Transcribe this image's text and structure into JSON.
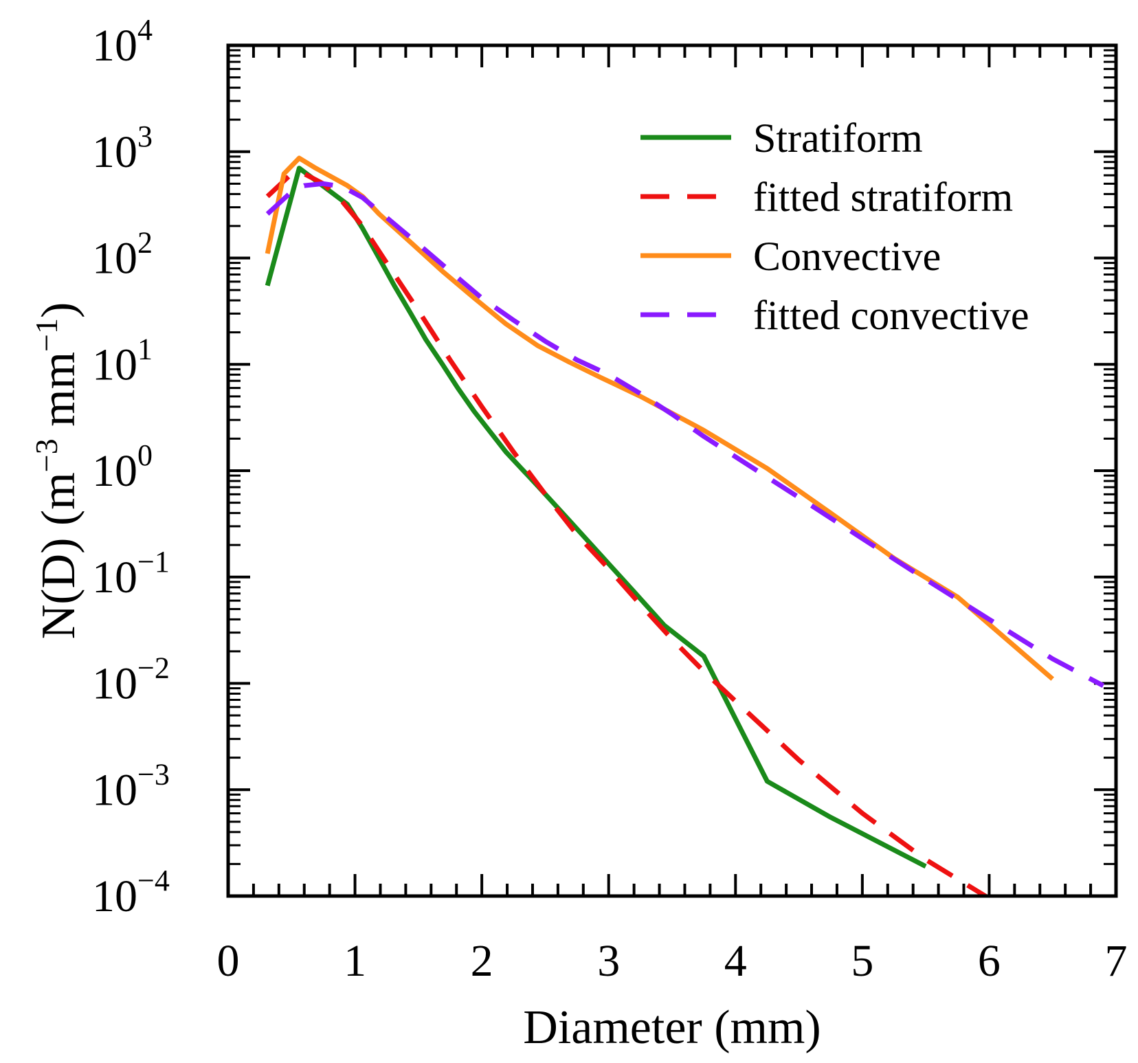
{
  "chart_data": {
    "type": "line",
    "title": "",
    "xlabel": "Diameter (mm)",
    "ylabel": {
      "prefix": "N(D) (m",
      "exp1": "−3",
      "middle": " mm",
      "exp2": "−1",
      "suffix": ")"
    },
    "x_scale": "linear",
    "y_scale": "log",
    "xlim": [
      0,
      7
    ],
    "ylim": [
      0.0001,
      10000
    ],
    "x_ticks": [
      "0",
      "1",
      "2",
      "3",
      "4",
      "5",
      "6",
      "7"
    ],
    "y_ticks": [
      {
        "value": 0.0001,
        "base": "10",
        "exp": "−4"
      },
      {
        "value": 0.001,
        "base": "10",
        "exp": "−3"
      },
      {
        "value": 0.01,
        "base": "10",
        "exp": "−2"
      },
      {
        "value": 0.1,
        "base": "10",
        "exp": "−1"
      },
      {
        "value": 1,
        "base": "10",
        "exp": "0"
      },
      {
        "value": 10,
        "base": "10",
        "exp": "1"
      },
      {
        "value": 100,
        "base": "10",
        "exp": "2"
      },
      {
        "value": 1000,
        "base": "10",
        "exp": "3"
      },
      {
        "value": 10000,
        "base": "10",
        "exp": "4"
      }
    ],
    "legend_position": "top-right",
    "series": [
      {
        "name": "Stratiform",
        "color": "#1a8a1a",
        "dash": "solid",
        "x": [
          0.31,
          0.56,
          0.94,
          1.06,
          1.19,
          1.31,
          1.44,
          1.56,
          1.69,
          1.81,
          1.94,
          2.19,
          2.44,
          2.69,
          2.94,
          3.19,
          3.44,
          3.75,
          4.25,
          4.75,
          5.5
        ],
        "y": [
          55,
          700,
          320,
          190,
          100,
          55,
          30,
          17,
          10,
          6,
          3.6,
          1.5,
          0.72,
          0.34,
          0.16,
          0.075,
          0.035,
          0.018,
          0.0012,
          0.00055,
          0.00019
        ]
      },
      {
        "name": "fitted stratiform",
        "color": "#ee1111",
        "dash": "dashed",
        "x": [
          0.31,
          0.5,
          0.6,
          0.75,
          0.9,
          1.06,
          1.25,
          1.5,
          1.75,
          2.0,
          2.25,
          2.5,
          2.75,
          3.0,
          3.25,
          3.5,
          3.75,
          4.0,
          4.5,
          5.0,
          5.5,
          6.0
        ],
        "y": [
          380,
          620,
          620,
          500,
          340,
          200,
          90,
          32,
          11,
          4.0,
          1.5,
          0.6,
          0.25,
          0.12,
          0.055,
          0.026,
          0.013,
          0.0068,
          0.0019,
          0.0006,
          0.00022,
          9.5e-05
        ]
      },
      {
        "name": "Convective",
        "color": "#ff8c1a",
        "dash": "solid",
        "x": [
          0.31,
          0.44,
          0.56,
          0.69,
          0.94,
          1.06,
          1.19,
          1.44,
          1.69,
          1.94,
          2.19,
          2.44,
          2.69,
          2.94,
          3.25,
          3.75,
          4.25,
          4.75,
          5.25,
          5.75,
          6.5
        ],
        "y": [
          110,
          620,
          870,
          700,
          480,
          380,
          260,
          140,
          75,
          42,
          24,
          15,
          10.5,
          7.5,
          5.0,
          2.4,
          1.05,
          0.4,
          0.15,
          0.065,
          0.011
        ]
      },
      {
        "name": "fitted convective",
        "color": "#8a1aff",
        "dash": "dashed",
        "x": [
          0.31,
          0.5,
          0.6,
          0.75,
          0.9,
          1.06,
          1.25,
          1.5,
          1.75,
          2.0,
          2.25,
          2.5,
          2.75,
          3.0,
          3.25,
          3.5,
          3.75,
          4.0,
          4.5,
          5.0,
          5.5,
          6.0,
          6.5,
          6.9
        ],
        "y": [
          260,
          420,
          480,
          500,
          470,
          370,
          240,
          135,
          75,
          42,
          26,
          16.5,
          11,
          8.0,
          5.3,
          3.4,
          2.1,
          1.35,
          0.56,
          0.23,
          0.095,
          0.04,
          0.017,
          0.0095
        ]
      }
    ]
  }
}
